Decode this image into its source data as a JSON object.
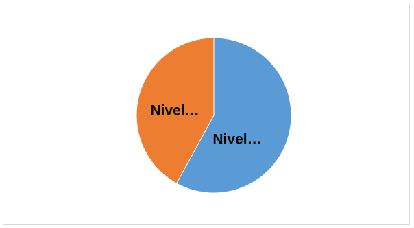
{
  "chart_data": {
    "type": "pie",
    "title": "",
    "slices": [
      {
        "label": "Nivel…",
        "value": 58,
        "color": "#5b9bd5"
      },
      {
        "label": "Nivel…",
        "value": 42,
        "color": "#ed7d31"
      }
    ]
  }
}
